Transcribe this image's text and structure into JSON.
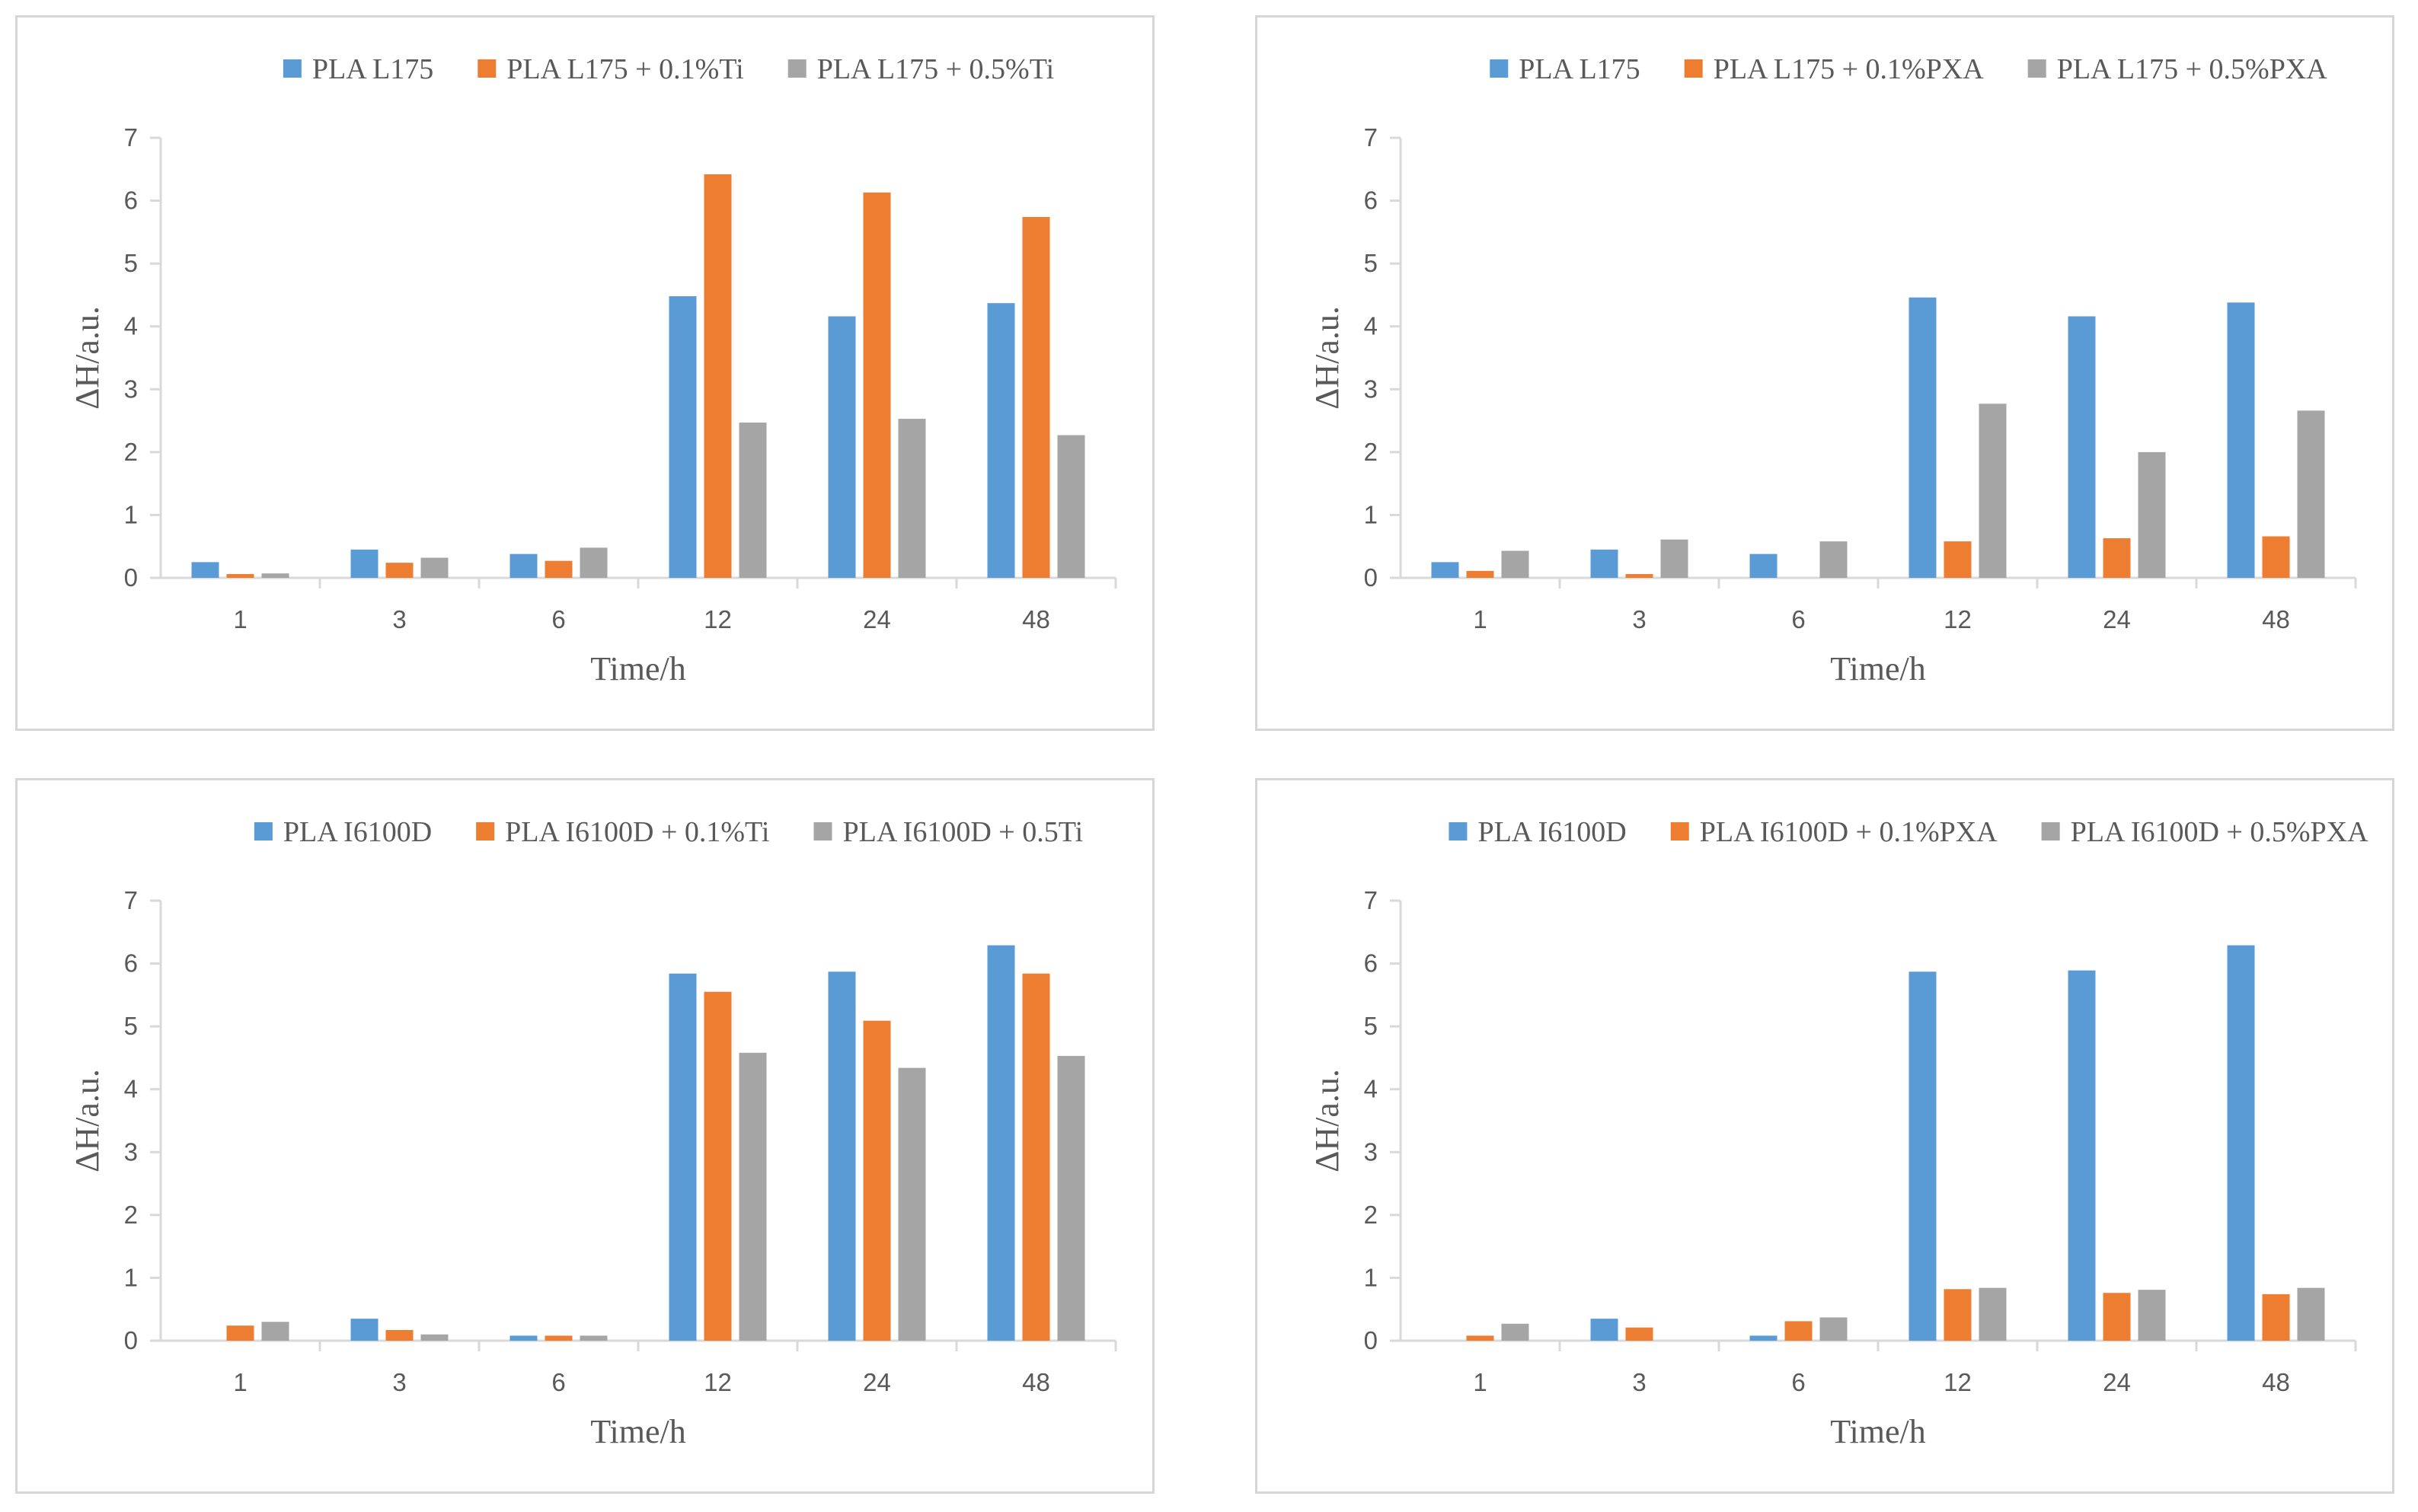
{
  "colors": {
    "series1": "#5b9bd5",
    "series2": "#ed7d31",
    "series3": "#a5a5a5"
  },
  "chart_data": [
    {
      "type": "bar",
      "categories": [
        "1",
        "3",
        "6",
        "12",
        "24",
        "48"
      ],
      "series": [
        {
          "name": "PLA L175",
          "values": [
            0.25,
            0.45,
            0.38,
            4.48,
            4.16,
            4.37
          ]
        },
        {
          "name": "PLA L175 + 0.1%Ti",
          "values": [
            0.06,
            0.24,
            0.27,
            6.42,
            6.13,
            5.74
          ]
        },
        {
          "name": "PLA L175 + 0.5%Ti",
          "values": [
            0.07,
            0.32,
            0.48,
            2.47,
            2.53,
            2.27
          ]
        }
      ],
      "xlabel": "Time/h",
      "ylabel": "ΔH/a.u.",
      "ylim": [
        0,
        7
      ],
      "yticks": [
        "0",
        "1",
        "2",
        "3",
        "4",
        "5",
        "6",
        "7"
      ],
      "legend": "top"
    },
    {
      "type": "bar",
      "categories": [
        "1",
        "3",
        "6",
        "12",
        "24",
        "48"
      ],
      "series": [
        {
          "name": "PLA L175",
          "values": [
            0.25,
            0.45,
            0.38,
            4.46,
            4.16,
            4.38
          ]
        },
        {
          "name": "PLA L175 + 0.1%PXA",
          "values": [
            0.11,
            0.06,
            0.0,
            0.58,
            0.63,
            0.66
          ]
        },
        {
          "name": "PLA L175 + 0.5%PXA",
          "values": [
            0.43,
            0.61,
            0.58,
            2.77,
            2.0,
            2.66
          ]
        }
      ],
      "xlabel": "Time/h",
      "ylabel": "ΔH/a.u.",
      "ylim": [
        0,
        7
      ],
      "yticks": [
        "0",
        "1",
        "2",
        "3",
        "4",
        "5",
        "6",
        "7"
      ],
      "legend": "top"
    },
    {
      "type": "bar",
      "categories": [
        "1",
        "3",
        "6",
        "12",
        "24",
        "48"
      ],
      "series": [
        {
          "name": "PLA I6100D",
          "values": [
            0.0,
            0.35,
            0.08,
            5.84,
            5.87,
            6.29
          ]
        },
        {
          "name": "PLA I6100D + 0.1%Ti",
          "values": [
            0.24,
            0.17,
            0.08,
            5.55,
            5.09,
            5.84
          ]
        },
        {
          "name": "PLA I6100D + 0.5Ti",
          "values": [
            0.3,
            0.1,
            0.08,
            4.58,
            4.34,
            4.53
          ]
        }
      ],
      "xlabel": "Time/h",
      "ylabel": "ΔH/a.u.",
      "ylim": [
        0,
        7
      ],
      "yticks": [
        "0",
        "1",
        "2",
        "3",
        "4",
        "5",
        "6",
        "7"
      ],
      "legend": "top"
    },
    {
      "type": "bar",
      "categories": [
        "1",
        "3",
        "6",
        "12",
        "24",
        "48"
      ],
      "series": [
        {
          "name": "PLA I6100D",
          "values": [
            0.0,
            0.35,
            0.08,
            5.87,
            5.89,
            6.29
          ]
        },
        {
          "name": "PLA I6100D + 0.1%PXA",
          "values": [
            0.08,
            0.21,
            0.31,
            0.82,
            0.76,
            0.74
          ]
        },
        {
          "name": "PLA I6100D + 0.5%PXA",
          "values": [
            0.27,
            0.0,
            0.37,
            0.84,
            0.81,
            0.84
          ]
        }
      ],
      "xlabel": "Time/h",
      "ylabel": "ΔH/a.u.",
      "ylim": [
        0,
        7
      ],
      "yticks": [
        "0",
        "1",
        "2",
        "3",
        "4",
        "5",
        "6",
        "7"
      ],
      "legend": "top"
    }
  ]
}
